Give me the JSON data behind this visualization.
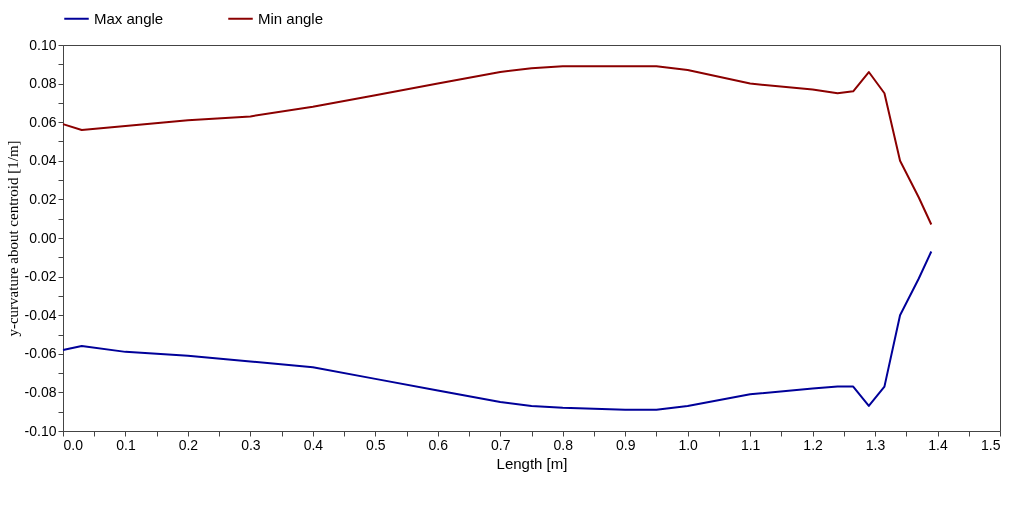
{
  "chart_data": {
    "type": "line",
    "xlabel": "Length [m]",
    "ylabel": "y-curvature about centroid  [1/m]",
    "xlim": [
      0,
      1.5
    ],
    "ylim": [
      -0.1,
      0.1
    ],
    "xticks": [
      {
        "value": 0,
        "label": "0.0"
      },
      {
        "value": 0.05,
        "label": null
      },
      {
        "value": 0.1,
        "label": "0.1"
      },
      {
        "value": 0.15,
        "label": null
      },
      {
        "value": 0.2,
        "label": "0.2"
      },
      {
        "value": 0.25,
        "label": null
      },
      {
        "value": 0.3,
        "label": "0.3"
      },
      {
        "value": 0.35,
        "label": null
      },
      {
        "value": 0.4,
        "label": "0.4"
      },
      {
        "value": 0.45,
        "label": null
      },
      {
        "value": 0.5,
        "label": "0.5"
      },
      {
        "value": 0.55,
        "label": null
      },
      {
        "value": 0.6,
        "label": "0.6"
      },
      {
        "value": 0.65,
        "label": null
      },
      {
        "value": 0.7,
        "label": "0.7"
      },
      {
        "value": 0.75,
        "label": null
      },
      {
        "value": 0.8,
        "label": "0.8"
      },
      {
        "value": 0.85,
        "label": null
      },
      {
        "value": 0.9,
        "label": "0.9"
      },
      {
        "value": 0.95,
        "label": null
      },
      {
        "value": 1,
        "label": "1.0"
      },
      {
        "value": 1.05,
        "label": null
      },
      {
        "value": 1.1,
        "label": "1.1"
      },
      {
        "value": 1.15,
        "label": null
      },
      {
        "value": 1.2,
        "label": "1.2"
      },
      {
        "value": 1.25,
        "label": null
      },
      {
        "value": 1.3,
        "label": "1.3"
      },
      {
        "value": 1.35,
        "label": null
      },
      {
        "value": 1.4,
        "label": "1.4"
      },
      {
        "value": 1.45,
        "label": null
      },
      {
        "value": 1.5,
        "label": "1.5"
      }
    ],
    "yticks": [
      {
        "value": -0.1,
        "label": "-0.10"
      },
      {
        "value": -0.09,
        "label": null
      },
      {
        "value": -0.08,
        "label": "-0.08"
      },
      {
        "value": -0.07,
        "label": null
      },
      {
        "value": -0.06,
        "label": "-0.06"
      },
      {
        "value": -0.05,
        "label": null
      },
      {
        "value": -0.04,
        "label": "-0.04"
      },
      {
        "value": -0.03,
        "label": null
      },
      {
        "value": -0.02,
        "label": "-0.02"
      },
      {
        "value": -0.01,
        "label": null
      },
      {
        "value": 0,
        "label": "0.00"
      },
      {
        "value": 0.01,
        "label": null
      },
      {
        "value": 0.02,
        "label": "0.02"
      },
      {
        "value": 0.03,
        "label": null
      },
      {
        "value": 0.04,
        "label": "0.04"
      },
      {
        "value": 0.05,
        "label": null
      },
      {
        "value": 0.06,
        "label": "0.06"
      },
      {
        "value": 0.07,
        "label": null
      },
      {
        "value": 0.08,
        "label": "0.08"
      },
      {
        "value": 0.09,
        "label": null
      },
      {
        "value": 0.1,
        "label": "0.10"
      }
    ],
    "x": [
      0,
      0.03,
      0.1,
      0.2,
      0.3,
      0.4,
      0.5,
      0.6,
      0.7,
      0.75,
      0.8,
      0.9,
      0.95,
      1.0,
      1.1,
      1.2,
      1.24,
      1.265,
      1.29,
      1.315,
      1.34,
      1.37,
      1.39
    ],
    "series": [
      {
        "name": "Max angle",
        "color": "#000099",
        "values": [
          -0.058,
          -0.056,
          -0.059,
          -0.061,
          -0.064,
          -0.067,
          -0.073,
          -0.079,
          -0.085,
          -0.087,
          -0.088,
          -0.089,
          -0.089,
          -0.087,
          -0.081,
          -0.078,
          -0.077,
          -0.077,
          -0.087,
          -0.077,
          -0.04,
          -0.021,
          -0.007
        ]
      },
      {
        "name": "Min angle",
        "color": "#8b0000",
        "values": [
          0.059,
          0.056,
          0.058,
          0.061,
          0.063,
          0.068,
          0.074,
          0.08,
          0.086,
          0.088,
          0.089,
          0.089,
          0.089,
          0.087,
          0.08,
          0.077,
          0.075,
          0.076,
          0.086,
          0.075,
          0.04,
          0.021,
          0.007
        ]
      }
    ],
    "legend": "top",
    "grid": false,
    "marker": "none",
    "line_style": "solid"
  }
}
